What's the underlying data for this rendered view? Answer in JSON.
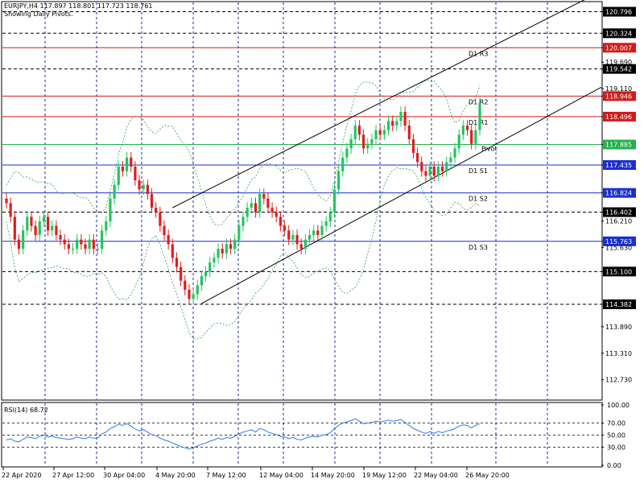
{
  "header": {
    "symbol_line": "EURJPY,H4  117.897 118.801 117.723 118.761",
    "subtitle": "Showing Daily Pivots."
  },
  "rsi_panel": {
    "label": "RSI(14) 68.72",
    "ticks": [
      "100.00",
      "70.00",
      "50.00",
      "30.00",
      "0.00"
    ]
  },
  "colors": {
    "bull": "#22c55e",
    "bear": "#e11d1d",
    "resistance": "#d11a1a",
    "support": "#1a2fd1",
    "pivot": "#22b14c",
    "grid": "#1e2aa0",
    "bands": "#2e9e4f",
    "rsi": "#2c7be5",
    "axis_box_dark": "#000000",
    "axis_box_red": "#d11a1a",
    "axis_box_blue": "#1a2fd1",
    "axis_box_green": "#22b14c"
  },
  "chart_data": [
    {
      "type": "candlestick",
      "title": "EURJPY,H4",
      "ylim": [
        112.3,
        121.0
      ],
      "y_ticks": [
        "120.796",
        "120.324",
        "120.007",
        "119.690",
        "119.542",
        "119.110",
        "118.946",
        "118.496",
        "117.885",
        "117.435",
        "116.824",
        "116.402",
        "116.210",
        "115.763",
        "115.630",
        "115.100",
        "114.382",
        "113.890",
        "113.310",
        "112.730"
      ],
      "x_tick_labels": [
        "22 Apr 2020",
        "27 Apr 12:00",
        "30 Apr 04:00",
        "4 May 20:00",
        "7 May 12:00",
        "12 May 04:00",
        "14 May 20:00",
        "19 May 12:00",
        "22 May 04:00",
        "26 May 20:00"
      ],
      "horizontal_lines": [
        {
          "label": "D1 R3",
          "value": 120.007,
          "kind": "resistance"
        },
        {
          "label": "D1 R2",
          "value": 118.946,
          "kind": "resistance"
        },
        {
          "label": "D1 R1",
          "value": 118.496,
          "kind": "resistance"
        },
        {
          "label": "Pivot",
          "value": 117.885,
          "kind": "pivot"
        },
        {
          "label": "D1 S1",
          "value": 117.435,
          "kind": "support"
        },
        {
          "label": "D1 S2",
          "value": 116.824,
          "kind": "support"
        },
        {
          "label": "D1 S3",
          "value": 115.763,
          "kind": "support"
        }
      ],
      "dashed_levels": [
        120.796,
        120.324,
        119.542,
        116.402,
        115.1,
        114.382
      ],
      "axis_highlights": [
        {
          "value": "120.796",
          "style": "dark"
        },
        {
          "value": "120.324",
          "style": "dark"
        },
        {
          "value": "120.007",
          "style": "red"
        },
        {
          "value": "119.542",
          "style": "dark"
        },
        {
          "value": "118.946",
          "style": "red"
        },
        {
          "value": "118.496",
          "style": "red"
        },
        {
          "value": "117.885",
          "style": "green"
        },
        {
          "value": "117.435",
          "style": "blue"
        },
        {
          "value": "116.824",
          "style": "blue"
        },
        {
          "value": "116.402",
          "style": "dark"
        },
        {
          "value": "115.763",
          "style": "blue"
        },
        {
          "value": "115.100",
          "style": "dark"
        },
        {
          "value": "114.382",
          "style": "dark"
        }
      ],
      "closes": [
        116.6,
        116.3,
        115.8,
        115.6,
        116.0,
        116.3,
        116.1,
        115.9,
        116.2,
        116.3,
        116.0,
        116.1,
        115.9,
        115.8,
        115.7,
        115.6,
        115.6,
        115.8,
        115.7,
        115.6,
        115.8,
        115.6,
        115.6,
        116.0,
        116.2,
        116.7,
        117.0,
        117.4,
        117.3,
        117.6,
        117.4,
        117.1,
        116.9,
        117.0,
        116.8,
        116.5,
        116.4,
        116.1,
        115.9,
        115.7,
        115.4,
        115.2,
        114.9,
        114.7,
        114.5,
        114.6,
        114.8,
        115.0,
        115.1,
        115.3,
        115.4,
        115.6,
        115.5,
        115.7,
        115.6,
        115.8,
        116.1,
        116.3,
        116.5,
        116.6,
        116.4,
        116.8,
        116.7,
        116.5,
        116.4,
        116.3,
        116.1,
        116.0,
        115.8,
        115.9,
        115.7,
        115.6,
        115.8,
        115.9,
        116.0,
        115.9,
        116.1,
        116.2,
        116.4,
        116.9,
        117.3,
        117.6,
        117.8,
        118.0,
        118.3,
        118.1,
        117.8,
        117.9,
        118.0,
        118.2,
        118.1,
        118.2,
        118.4,
        118.3,
        118.4,
        118.6,
        118.3,
        118.0,
        117.7,
        117.5,
        117.3,
        117.2,
        117.4,
        117.2,
        117.4,
        117.3,
        117.5,
        117.6,
        117.8,
        118.1,
        118.3,
        118.2,
        117.9,
        118.2,
        118.8
      ],
      "channel_lines": [
        {
          "from": [
            40,
            116.5
          ],
          "to": [
            114,
            119.9
          ]
        },
        {
          "from": [
            47,
            114.4
          ],
          "to": [
            114,
            117.7
          ]
        }
      ]
    },
    {
      "type": "line",
      "title": "RSI(14) 68.72",
      "ylim": [
        0,
        100
      ],
      "levels": [
        70,
        50,
        30
      ],
      "values": [
        42,
        44,
        40,
        39,
        43,
        47,
        46,
        44,
        48,
        50,
        47,
        48,
        46,
        45,
        44,
        43,
        44,
        47,
        45,
        44,
        47,
        45,
        45,
        52,
        55,
        61,
        64,
        68,
        66,
        69,
        65,
        60,
        57,
        59,
        55,
        51,
        49,
        45,
        42,
        40,
        37,
        34,
        31,
        29,
        27,
        29,
        32,
        35,
        37,
        40,
        42,
        45,
        43,
        46,
        45,
        48,
        52,
        55,
        57,
        59,
        55,
        61,
        59,
        55,
        53,
        51,
        48,
        47,
        44,
        46,
        43,
        42,
        45,
        47,
        48,
        47,
        50,
        51,
        54,
        61,
        66,
        70,
        72,
        74,
        77,
        73,
        69,
        70,
        71,
        73,
        72,
        73,
        75,
        73,
        74,
        76,
        71,
        66,
        61,
        58,
        55,
        53,
        56,
        53,
        56,
        54,
        57,
        58,
        61,
        65,
        67,
        66,
        62,
        66,
        69
      ]
    }
  ]
}
